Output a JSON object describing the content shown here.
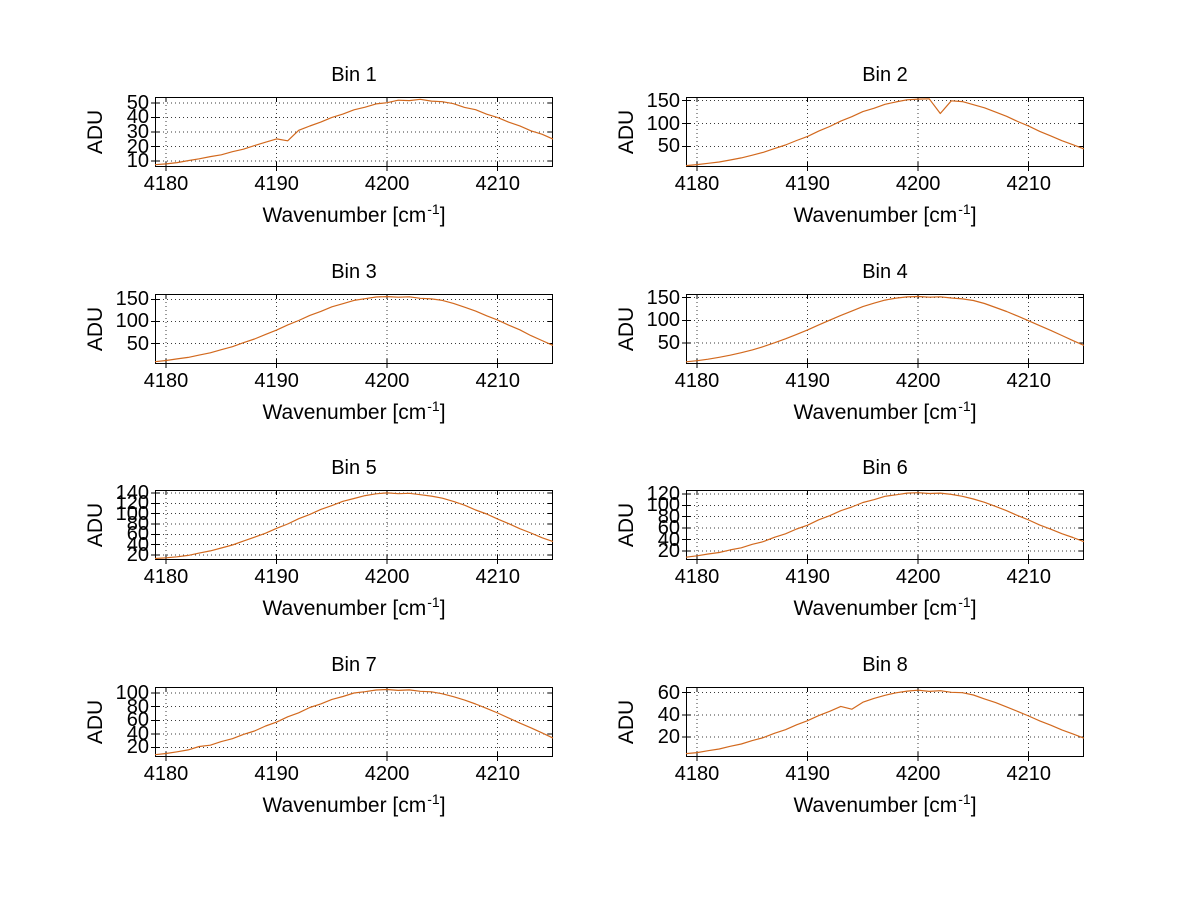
{
  "figure": {
    "background": "#ffffff",
    "line_color": "#d2691e",
    "grid_color": "#3a3a3a",
    "axis_color": "#000000",
    "text_color": "#000000",
    "grid": true,
    "legend": "none"
  },
  "chart_data": [
    {
      "type": "line",
      "title": "Bin 1",
      "xlabel": "Wavenumber [cm⁻¹]",
      "xlabel_base": "Wavenumber [cm",
      "xlabel_sup": "-1",
      "xlabel_close": "]",
      "ylabel": "ADU",
      "xlim": [
        4179,
        4215
      ],
      "ylim": [
        6,
        54
      ],
      "xticks": [
        4180,
        4190,
        4200,
        4210
      ],
      "yticks": [
        10,
        20,
        30,
        40,
        50
      ],
      "x_start": 4179,
      "x_step": 1,
      "values": [
        7.6,
        8.1,
        9.0,
        10.4,
        11.6,
        13.1,
        14.4,
        16.5,
        18.2,
        20.7,
        23.0,
        25.3,
        24.0,
        31.2,
        34.1,
        36.8,
        40.0,
        42.3,
        45.2,
        47.0,
        49.3,
        50.1,
        51.8,
        51.5,
        52.4,
        51.2,
        50.8,
        49.4,
        46.9,
        45.3,
        42.2,
        39.9,
        36.7,
        34.2,
        30.8,
        28.5,
        25.1
      ]
    },
    {
      "type": "line",
      "title": "Bin 2",
      "xlabel": "Wavenumber [cm⁻¹]",
      "xlabel_base": "Wavenumber [cm",
      "xlabel_sup": "-1",
      "xlabel_close": "]",
      "ylabel": "ADU",
      "xlim": [
        4179,
        4215
      ],
      "ylim": [
        5,
        158
      ],
      "xticks": [
        4180,
        4190,
        4200,
        4210
      ],
      "yticks": [
        50,
        100,
        150
      ],
      "x_start": 4179,
      "x_step": 1,
      "values": [
        8.0,
        10.3,
        13.0,
        16.0,
        20.3,
        24.8,
        30.9,
        37.1,
        45.2,
        53.1,
        62.9,
        71.8,
        83.5,
        93.6,
        105.3,
        115.0,
        126.1,
        133.4,
        142.0,
        147.2,
        151.9,
        153.4,
        154.1,
        122.0,
        149.8,
        147.9,
        141.2,
        134.3,
        125.0,
        115.9,
        104.4,
        94.3,
        82.8,
        72.9,
        62.4,
        53.7,
        44.6
      ]
    },
    {
      "type": "line",
      "title": "Bin 3",
      "xlabel": "Wavenumber [cm⁻¹]",
      "xlabel_base": "Wavenumber [cm",
      "xlabel_sup": "-1",
      "xlabel_close": "]",
      "ylabel": "ADU",
      "xlim": [
        4179,
        4215
      ],
      "ylim": [
        4,
        162
      ],
      "xticks": [
        4180,
        4190,
        4200,
        4210
      ],
      "yticks": [
        50,
        100,
        150
      ],
      "x_start": 4179,
      "x_step": 1,
      "values": [
        9.2,
        11.8,
        15.4,
        19.0,
        24.1,
        29.3,
        36.2,
        43.1,
        52.0,
        60.5,
        70.9,
        80.6,
        92.3,
        102.1,
        113.6,
        122.7,
        133.0,
        140.1,
        147.6,
        151.4,
        155.3,
        156.2,
        154.8,
        155.6,
        152.3,
        150.9,
        147.5,
        140.8,
        132.1,
        123.5,
        112.8,
        103.0,
        91.5,
        81.3,
        68.0,
        57.0,
        46.0
      ]
    },
    {
      "type": "line",
      "title": "Bin 4",
      "xlabel": "Wavenumber [cm⁻¹]",
      "xlabel_base": "Wavenumber [cm",
      "xlabel_sup": "-1",
      "xlabel_close": "]",
      "ylabel": "ADU",
      "xlim": [
        4179,
        4215
      ],
      "ylim": [
        4,
        158
      ],
      "xticks": [
        4180,
        4190,
        4200,
        4210
      ],
      "yticks": [
        50,
        100,
        150
      ],
      "x_start": 4179,
      "x_step": 1,
      "values": [
        8.8,
        11.2,
        14.6,
        18.7,
        23.4,
        28.9,
        35.1,
        42.3,
        50.7,
        59.4,
        69.2,
        79.1,
        90.0,
        100.3,
        110.9,
        120.4,
        130.2,
        137.8,
        144.6,
        148.9,
        151.7,
        152.4,
        151.0,
        151.9,
        149.2,
        147.3,
        143.8,
        137.2,
        128.4,
        119.6,
        109.3,
        99.1,
        88.2,
        78.0,
        66.8,
        55.4,
        44.9
      ]
    },
    {
      "type": "line",
      "title": "Bin 5",
      "xlabel": "Wavenumber [cm⁻¹]",
      "xlabel_base": "Wavenumber [cm",
      "xlabel_sup": "-1",
      "xlabel_close": "]",
      "ylabel": "ADU",
      "xlim": [
        4179,
        4215
      ],
      "ylim": [
        10,
        146
      ],
      "xticks": [
        4180,
        4190,
        4200,
        4210
      ],
      "yticks": [
        20,
        40,
        60,
        80,
        100,
        120,
        140
      ],
      "x_start": 4179,
      "x_step": 1,
      "values": [
        13.0,
        14.2,
        16.3,
        19.0,
        23.5,
        27.6,
        33.4,
        39.2,
        46.8,
        54.3,
        62.0,
        71.6,
        80.0,
        90.2,
        98.5,
        108.3,
        115.7,
        124.0,
        129.4,
        135.2,
        138.6,
        140.3,
        138.9,
        139.5,
        136.8,
        134.2,
        130.1,
        123.8,
        116.5,
        107.2,
        99.3,
        89.4,
        80.6,
        70.8,
        62.5,
        53.4,
        45.8
      ]
    },
    {
      "type": "line",
      "title": "Bin 6",
      "xlabel": "Wavenumber [cm⁻¹]",
      "xlabel_base": "Wavenumber [cm",
      "xlabel_sup": "-1",
      "xlabel_close": "]",
      "ylabel": "ADU",
      "xlim": [
        4179,
        4215
      ],
      "ylim": [
        4,
        127
      ],
      "xticks": [
        4180,
        4190,
        4200,
        4210
      ],
      "yticks": [
        20,
        40,
        60,
        80,
        100,
        120
      ],
      "x_start": 4179,
      "x_step": 1,
      "values": [
        9.0,
        11.3,
        14.6,
        17.2,
        21.8,
        25.5,
        31.6,
        36.4,
        43.9,
        50.0,
        58.4,
        65.2,
        74.6,
        81.8,
        90.7,
        97.2,
        105.1,
        110.0,
        115.9,
        118.6,
        121.5,
        122.3,
        120.8,
        121.6,
        119.2,
        116.0,
        111.2,
        105.3,
        98.1,
        90.6,
        82.0,
        74.3,
        65.4,
        58.1,
        50.2,
        43.6,
        36.2
      ]
    },
    {
      "type": "line",
      "title": "Bin 7",
      "xlabel": "Wavenumber [cm⁻¹]",
      "xlabel_base": "Wavenumber [cm",
      "xlabel_sup": "-1",
      "xlabel_close": "]",
      "ylabel": "ADU",
      "xlim": [
        4179,
        4215
      ],
      "ylim": [
        6,
        109
      ],
      "xticks": [
        4180,
        4190,
        4200,
        4210
      ],
      "yticks": [
        20,
        40,
        60,
        80,
        100
      ],
      "x_start": 4179,
      "x_step": 1,
      "values": [
        9.4,
        11.2,
        13.7,
        16.4,
        21.5,
        23.4,
        28.6,
        33.0,
        39.2,
        44.3,
        51.6,
        57.4,
        65.2,
        71.1,
        78.9,
        84.2,
        90.8,
        95.0,
        100.2,
        102.1,
        104.6,
        105.3,
        104.0,
        104.8,
        102.6,
        101.9,
        99.0,
        94.8,
        89.7,
        84.0,
        77.5,
        70.8,
        63.2,
        55.9,
        48.9,
        41.6,
        33.8
      ]
    },
    {
      "type": "line",
      "title": "Bin 8",
      "xlabel": "Wavenumber [cm⁻¹]",
      "xlabel_base": "Wavenumber [cm",
      "xlabel_sup": "-1",
      "xlabel_close": "]",
      "ylabel": "ADU",
      "xlim": [
        4179,
        4215
      ],
      "ylim": [
        2,
        65
      ],
      "xticks": [
        4180,
        4190,
        4200,
        4210
      ],
      "yticks": [
        20,
        40,
        60
      ],
      "x_start": 4179,
      "x_step": 1,
      "values": [
        5.1,
        6.0,
        7.7,
        9.2,
        11.6,
        13.7,
        16.8,
        19.5,
        23.3,
        26.6,
        31.0,
        34.7,
        39.3,
        43.1,
        47.5,
        45.0,
        51.3,
        54.7,
        57.5,
        59.8,
        61.3,
        62.1,
        61.0,
        61.7,
        60.2,
        59.9,
        57.8,
        54.3,
        51.0,
        47.1,
        43.0,
        38.9,
        34.5,
        30.6,
        26.4,
        22.8,
        18.9
      ]
    }
  ]
}
